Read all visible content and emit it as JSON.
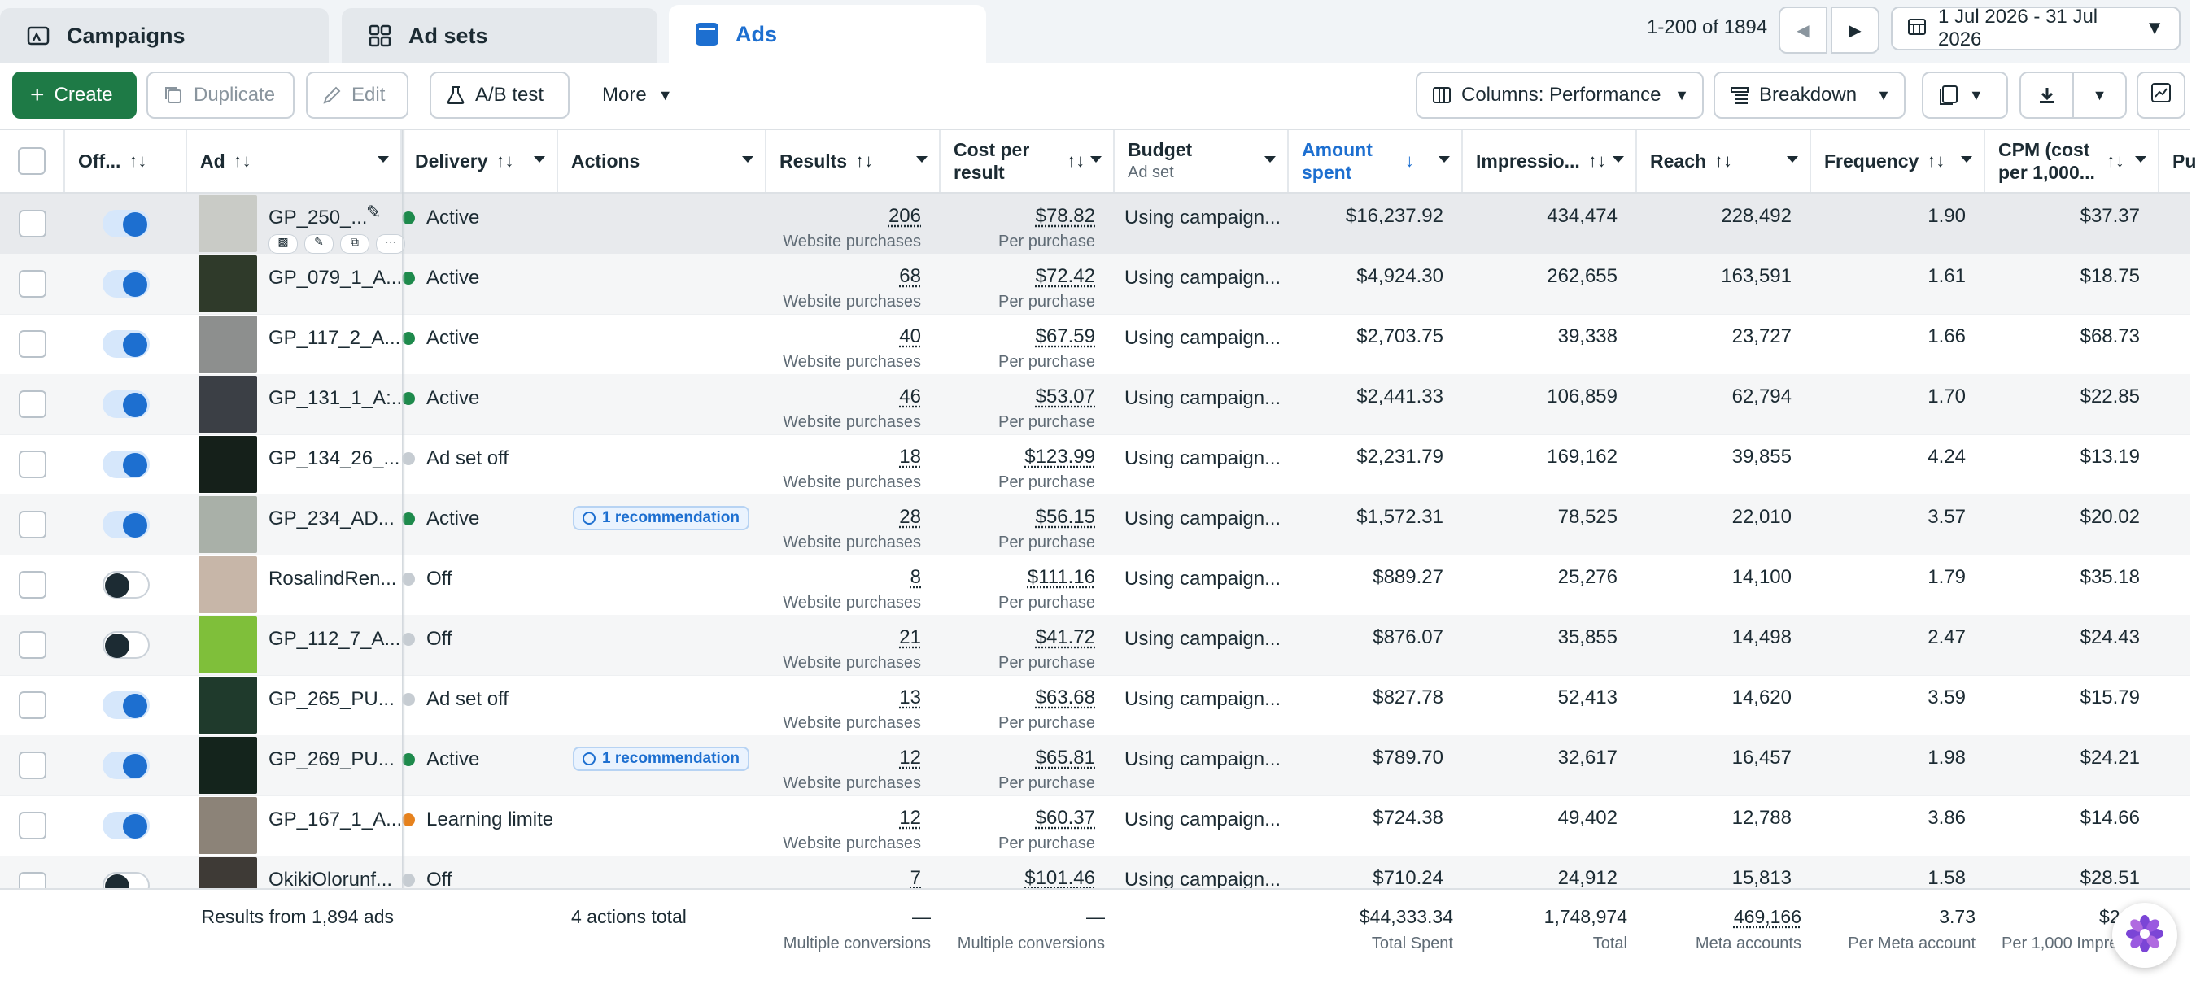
{
  "tabs": [
    {
      "label": "Campaigns",
      "icon": "campaigns-icon"
    },
    {
      "label": "Ad sets",
      "icon": "adsets-grid-icon"
    },
    {
      "label": "Ads",
      "icon": "ads-icon"
    }
  ],
  "pagination": {
    "text": "1-200 of 1894"
  },
  "date_range": "1 Jul 2026 - 31 Jul 2026",
  "toolbar": {
    "create": "Create",
    "duplicate": "Duplicate",
    "edit": "Edit",
    "ab_test": "A/B test",
    "more": "More",
    "columns": "Columns: Performance",
    "breakdown": "Breakdown"
  },
  "columns": {
    "offon": "Off...",
    "ad": "Ad",
    "delivery": "Delivery",
    "actions": "Actions",
    "results": "Results",
    "cost_per_result_1": "Cost per",
    "cost_per_result_2": "result",
    "budget": "Budget",
    "budget_sub": "Ad set",
    "amount_spent_1": "Amount",
    "amount_spent_2": "spent",
    "impressions": "Impressio...",
    "reach": "Reach",
    "frequency": "Frequency",
    "cpm_1": "CPM (cost",
    "cpm_2": "per 1,000...",
    "next_col": "Pu"
  },
  "rows": [
    {
      "name": "GP_250_...",
      "on": true,
      "delivery": "Active",
      "status": "green",
      "rec": "",
      "results": "206",
      "results_sub": "Website purchases",
      "cpr": "$78.82",
      "cpr_sub": "Per purchase",
      "budget": "Using campaign...",
      "spent": "$16,237.92",
      "impressions": "434,474",
      "reach": "228,492",
      "frequency": "1.90",
      "cpm": "$37.37",
      "thumb": "#c9cbc6"
    },
    {
      "name": "GP_079_1_A...",
      "on": true,
      "delivery": "Active",
      "status": "green",
      "rec": "",
      "results": "68",
      "results_sub": "Website purchases",
      "cpr": "$72.42",
      "cpr_sub": "Per purchase",
      "budget": "Using campaign...",
      "spent": "$4,924.30",
      "impressions": "262,655",
      "reach": "163,591",
      "frequency": "1.61",
      "cpm": "$18.75",
      "thumb": "#2f3a2a"
    },
    {
      "name": "GP_117_2_A...",
      "on": true,
      "delivery": "Active",
      "status": "green",
      "rec": "",
      "results": "40",
      "results_sub": "Website purchases",
      "cpr": "$67.59",
      "cpr_sub": "Per purchase",
      "budget": "Using campaign...",
      "spent": "$2,703.75",
      "impressions": "39,338",
      "reach": "23,727",
      "frequency": "1.66",
      "cpm": "$68.73",
      "thumb": "#8d8f8e"
    },
    {
      "name": "GP_131_1_A:...",
      "on": true,
      "delivery": "Active",
      "status": "green",
      "rec": "",
      "results": "46",
      "results_sub": "Website purchases",
      "cpr": "$53.07",
      "cpr_sub": "Per purchase",
      "budget": "Using campaign...",
      "spent": "$2,441.33",
      "impressions": "106,859",
      "reach": "62,794",
      "frequency": "1.70",
      "cpm": "$22.85",
      "thumb": "#3b3f45"
    },
    {
      "name": "GP_134_26_...",
      "on": true,
      "delivery": "Ad set off",
      "status": "grey",
      "rec": "",
      "results": "18",
      "results_sub": "Website purchases",
      "cpr": "$123.99",
      "cpr_sub": "Per purchase",
      "budget": "Using campaign...",
      "spent": "$2,231.79",
      "impressions": "169,162",
      "reach": "39,855",
      "frequency": "4.24",
      "cpm": "$13.19",
      "thumb": "#15201a"
    },
    {
      "name": "GP_234_AD...",
      "on": true,
      "delivery": "Active",
      "status": "green",
      "rec": "1 recommendation",
      "results": "28",
      "results_sub": "Website purchases",
      "cpr": "$56.15",
      "cpr_sub": "Per purchase",
      "budget": "Using campaign...",
      "spent": "$1,572.31",
      "impressions": "78,525",
      "reach": "22,010",
      "frequency": "3.57",
      "cpm": "$20.02",
      "thumb": "#a9b0a8"
    },
    {
      "name": "RosalindRen...",
      "on": false,
      "delivery": "Off",
      "status": "grey",
      "rec": "",
      "results": "8",
      "results_sub": "Website purchases",
      "cpr": "$111.16",
      "cpr_sub": "Per purchase",
      "budget": "Using campaign...",
      "spent": "$889.27",
      "impressions": "25,276",
      "reach": "14,100",
      "frequency": "1.79",
      "cpm": "$35.18",
      "thumb": "#c7b6a8"
    },
    {
      "name": "GP_112_7_A...",
      "on": false,
      "delivery": "Off",
      "status": "grey",
      "rec": "",
      "results": "21",
      "results_sub": "Website purchases",
      "cpr": "$41.72",
      "cpr_sub": "Per purchase",
      "budget": "Using campaign...",
      "spent": "$876.07",
      "impressions": "35,855",
      "reach": "14,498",
      "frequency": "2.47",
      "cpm": "$24.43",
      "thumb": "#7fbf3a"
    },
    {
      "name": "GP_265_PU...",
      "on": true,
      "delivery": "Ad set off",
      "status": "grey",
      "rec": "",
      "results": "13",
      "results_sub": "Website purchases",
      "cpr": "$63.68",
      "cpr_sub": "Per purchase",
      "budget": "Using campaign...",
      "spent": "$827.78",
      "impressions": "52,413",
      "reach": "14,620",
      "frequency": "3.59",
      "cpm": "$15.79",
      "thumb": "#1f3a2c"
    },
    {
      "name": "GP_269_PU...",
      "on": true,
      "delivery": "Active",
      "status": "green",
      "rec": "1 recommendation",
      "results": "12",
      "results_sub": "Website purchases",
      "cpr": "$65.81",
      "cpr_sub": "Per purchase",
      "budget": "Using campaign...",
      "spent": "$789.70",
      "impressions": "32,617",
      "reach": "16,457",
      "frequency": "1.98",
      "cpm": "$24.21",
      "thumb": "#14241c"
    },
    {
      "name": "GP_167_1_A...",
      "on": true,
      "delivery": "Learning limite",
      "status": "orange",
      "rec": "",
      "results": "12",
      "results_sub": "Website purchases",
      "cpr": "$60.37",
      "cpr_sub": "Per purchase",
      "budget": "Using campaign...",
      "spent": "$724.38",
      "impressions": "49,402",
      "reach": "12,788",
      "frequency": "3.86",
      "cpm": "$14.66",
      "thumb": "#8c8378"
    },
    {
      "name": "OkikiOlorunf...",
      "on": false,
      "delivery": "Off",
      "status": "grey",
      "rec": "",
      "results": "7",
      "results_sub": "",
      "cpr": "$101.46",
      "cpr_sub": "",
      "budget": "Using campaign...",
      "spent": "$710.24",
      "impressions": "24,912",
      "reach": "15,813",
      "frequency": "1.58",
      "cpm": "$28.51",
      "thumb": "#3e3a36"
    }
  ],
  "footer": {
    "label": "Results from 1,894 ads",
    "actions": "4 actions total",
    "results": "—",
    "results_sub": "Multiple conversions",
    "cpr": "—",
    "cpr_sub": "Multiple conversions",
    "spent": "$44,333.34",
    "spent_sub": "Total Spent",
    "impressions": "1,748,974",
    "impressions_sub": "Total",
    "reach": "469,166",
    "reach_sub": "Meta accounts",
    "frequency": "3.73",
    "frequency_sub": "Per Meta account",
    "cpm": "$2...",
    "cpm_sub": "Per 1,000 Impre..."
  },
  "colors": {
    "brand_blue": "#1d6fd0",
    "create_green": "#1e7a46",
    "active_green": "#1e8a4c",
    "learning_orange": "#e6821e"
  }
}
